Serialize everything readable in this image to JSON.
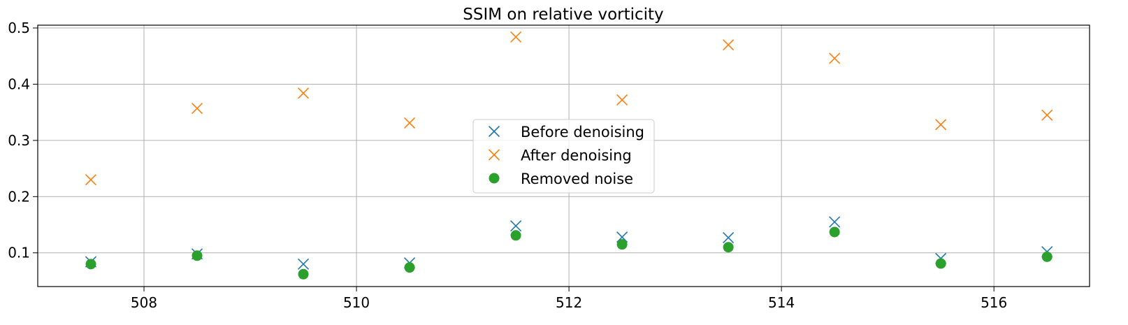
{
  "chart_data": {
    "type": "scatter",
    "title": "SSIM on relative vorticity",
    "xlabel": "",
    "ylabel": "",
    "xlim": [
      507.0,
      516.9
    ],
    "ylim": [
      0.04,
      0.505
    ],
    "xticks": [
      508,
      510,
      512,
      514,
      516
    ],
    "yticks": [
      0.1,
      0.2,
      0.3,
      0.4,
      0.5
    ],
    "x_tick_labels": [
      "508",
      "510",
      "512",
      "514",
      "516"
    ],
    "y_tick_labels": [
      "0.1",
      "0.2",
      "0.3",
      "0.4",
      "0.5"
    ],
    "grid": true,
    "legend_position": "center",
    "x": [
      507.5,
      508.5,
      509.5,
      510.5,
      511.5,
      512.5,
      513.5,
      514.5,
      515.5,
      516.5
    ],
    "series": [
      {
        "name": "Before denoising",
        "marker": "x",
        "color": "#1f77b4",
        "values": [
          0.084,
          0.098,
          0.08,
          0.082,
          0.148,
          0.128,
          0.127,
          0.155,
          0.09,
          0.102
        ]
      },
      {
        "name": "After denoising",
        "marker": "x",
        "color": "#ff7f0e",
        "values": [
          0.23,
          0.357,
          0.384,
          0.331,
          0.484,
          0.372,
          0.47,
          0.446,
          0.328,
          0.345
        ]
      },
      {
        "name": "Removed noise",
        "marker": "o",
        "color": "#2ca02c",
        "values": [
          0.08,
          0.095,
          0.062,
          0.074,
          0.131,
          0.115,
          0.11,
          0.137,
          0.081,
          0.093
        ]
      }
    ]
  }
}
